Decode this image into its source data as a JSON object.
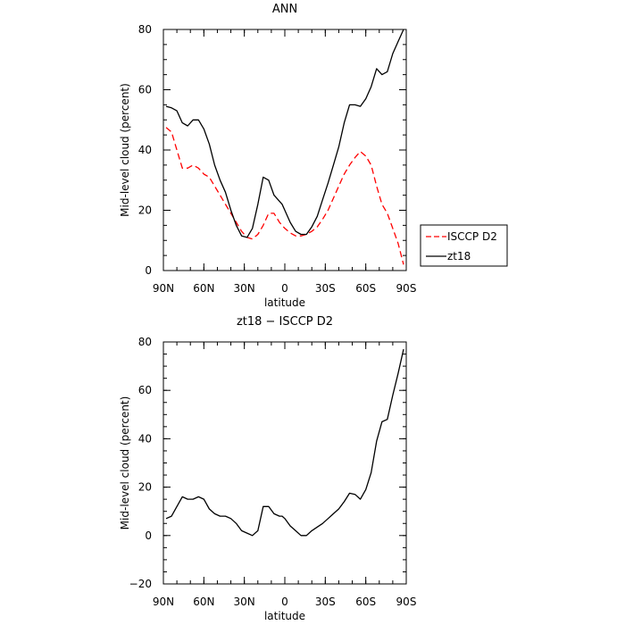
{
  "chart_data": [
    {
      "type": "line",
      "title": "ANN",
      "xlabel": "latitude",
      "ylabel": "Mid-level cloud (percent)",
      "xlim": [
        90,
        -90
      ],
      "ylim": [
        0,
        80
      ],
      "xticks": [
        90,
        60,
        30,
        0,
        -30,
        -60,
        -90
      ],
      "xtick_labels": [
        "90N",
        "60N",
        "30N",
        "0",
        "30S",
        "60S",
        "90S"
      ],
      "yticks": [
        0,
        20,
        40,
        60,
        80
      ],
      "ytick_labels": [
        "0",
        "20",
        "40",
        "60",
        "80"
      ],
      "legend_position": "right",
      "series": [
        {
          "name": "ISCCP D2",
          "color": "#ff0000",
          "dash": "dashed",
          "x": [
            88,
            84,
            80,
            76,
            72,
            68,
            64,
            60,
            56,
            52,
            48,
            44,
            40,
            36,
            32,
            28,
            24,
            20,
            16,
            12,
            8,
            4,
            2,
            0,
            -4,
            -8,
            -12,
            -16,
            -20,
            -24,
            -28,
            -32,
            -36,
            -40,
            -44,
            -48,
            -52,
            -56,
            -60,
            -64,
            -68,
            -72,
            -76,
            -80,
            -84,
            -88
          ],
          "y": [
            47.5,
            46,
            40,
            34,
            34,
            35,
            34,
            32,
            31,
            28,
            25,
            22,
            19,
            16,
            13,
            11,
            10.5,
            12,
            15,
            19,
            19,
            16,
            15,
            14,
            12.5,
            11.5,
            11.5,
            12,
            13,
            14.5,
            17,
            20,
            24,
            28,
            32,
            35,
            37.5,
            39.5,
            38,
            35,
            28,
            22,
            19,
            14,
            9,
            2
          ]
        },
        {
          "name": "zt18",
          "color": "#000000",
          "dash": "solid",
          "x": [
            88,
            84,
            80,
            76,
            72,
            68,
            64,
            60,
            56,
            52,
            48,
            44,
            40,
            36,
            32,
            28,
            24,
            20,
            16,
            12,
            8,
            4,
            2,
            0,
            -4,
            -8,
            -12,
            -16,
            -20,
            -24,
            -28,
            -32,
            -36,
            -40,
            -44,
            -48,
            -52,
            -56,
            -60,
            -64,
            -68,
            -72,
            -76,
            -80,
            -84,
            -88
          ],
          "y": [
            54.5,
            54,
            53,
            49,
            48,
            50,
            50,
            47,
            42,
            35,
            30,
            26,
            20,
            15,
            11.5,
            11,
            14,
            22,
            31,
            30,
            25,
            23,
            22,
            20,
            16,
            13,
            12,
            12,
            14.5,
            18,
            23.5,
            29,
            35,
            41,
            49,
            55,
            55,
            54.5,
            57,
            61,
            67,
            65,
            66,
            72,
            76,
            80
          ]
        }
      ]
    },
    {
      "type": "line",
      "title": "zt18 − ISCCP D2",
      "xlabel": "latitude",
      "ylabel": "Mid-level cloud (percent)",
      "xlim": [
        90,
        -90
      ],
      "ylim": [
        -20,
        80
      ],
      "xticks": [
        90,
        60,
        30,
        0,
        -30,
        -60,
        -90
      ],
      "xtick_labels": [
        "90N",
        "60N",
        "30N",
        "0",
        "30S",
        "60S",
        "90S"
      ],
      "yticks": [
        -20,
        0,
        20,
        40,
        60,
        80
      ],
      "ytick_labels": [
        "−20",
        "0",
        "20",
        "40",
        "60",
        "80"
      ],
      "series": [
        {
          "color": "#000000",
          "dash": "solid",
          "x": [
            88,
            84,
            80,
            76,
            72,
            68,
            64,
            60,
            56,
            52,
            48,
            44,
            40,
            36,
            32,
            28,
            24,
            20,
            16,
            12,
            8,
            4,
            2,
            0,
            -4,
            -8,
            -12,
            -16,
            -20,
            -24,
            -28,
            -32,
            -36,
            -40,
            -44,
            -48,
            -52,
            -56,
            -60,
            -64,
            -68,
            -72,
            -76,
            -80,
            -84,
            -88
          ],
          "y": [
            7,
            8,
            12,
            16,
            15,
            15,
            16,
            15,
            11,
            9,
            8,
            8,
            7,
            5,
            2,
            1,
            0,
            2,
            12,
            12,
            9,
            8,
            8,
            7,
            4,
            2,
            0,
            0,
            2,
            3.5,
            5,
            7,
            9,
            11,
            14,
            17.5,
            17,
            15,
            19,
            26,
            39,
            47,
            48,
            58,
            67,
            77
          ]
        }
      ]
    }
  ]
}
